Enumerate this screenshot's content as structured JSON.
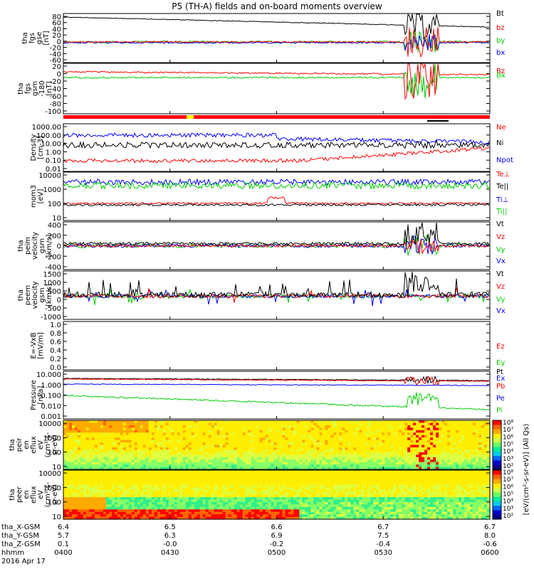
{
  "title": "P5 (TH-A) fields and on-board moments overview",
  "colors": {
    "black": "#000000",
    "red": "#ff0000",
    "green": "#00cc00",
    "blue": "#0000ff",
    "yellow": "#ffff00"
  },
  "chart_data": [
    {
      "type": "line",
      "panel": "fgs",
      "ylabel_lines": [
        "tha",
        "fgs",
        "gse",
        "[nT]"
      ],
      "yticks": [
        "80",
        "60",
        "40",
        "20",
        "0",
        "-20",
        "-40",
        "-60"
      ],
      "ylim": [
        -60,
        90
      ],
      "series": [
        {
          "name": "Bt",
          "color": "#000000"
        },
        {
          "name": "bz",
          "color": "#ff0000"
        },
        {
          "name": "by",
          "color": "#00cc00"
        },
        {
          "name": "bx",
          "color": "#0000ff"
        }
      ]
    },
    {
      "type": "line",
      "panel": "fgs-gsm",
      "ylabel_lines": [
        "tha",
        "fgs",
        "gsm",
        "-180",
        "[nT]"
      ],
      "yticks": [
        "20",
        "0",
        "-20",
        "-40",
        "-60",
        "-80",
        "-100"
      ],
      "ylim": [
        -110,
        25
      ],
      "series": [
        {
          "name": "Bz",
          "color": "#ff0000"
        },
        {
          "name": "Bx",
          "color": "#00cc00"
        }
      ]
    },
    {
      "type": "line",
      "panel": "density",
      "ylabel_lines": [
        "Density",
        "[cm-3]"
      ],
      "yticks": [
        "1000.00",
        "100.00",
        "10.00",
        "1.00",
        "0.10",
        "0.01"
      ],
      "yscale": "log",
      "ylim": [
        0.005,
        2000
      ],
      "series": [
        {
          "name": "Ne",
          "color": "#ff0000"
        },
        {
          "name": "Ni",
          "color": "#000000"
        },
        {
          "name": "Npot",
          "color": "#0000ff"
        }
      ]
    },
    {
      "type": "line",
      "panel": "temperature",
      "ylabel_lines": [
        "mom3",
        "[eV]"
      ],
      "yticks": [
        "10000",
        "1000",
        "100",
        "10"
      ],
      "yscale": "log",
      "ylim": [
        3,
        30000
      ],
      "series": [
        {
          "name": "Te⊥",
          "color": "#ff0000"
        },
        {
          "name": "Te||",
          "color": "#000000"
        },
        {
          "name": "Ti⊥",
          "color": "#0000ff"
        },
        {
          "name": "Ti||",
          "color": "#00cc00"
        }
      ]
    },
    {
      "type": "line",
      "panel": "peim-velocity",
      "ylabel_lines": [
        "tha",
        "peim",
        "velocity",
        "gsm",
        "[km/s]"
      ],
      "yticks": [
        "400",
        "200",
        "0",
        "-200",
        "-400"
      ],
      "ylim": [
        -420,
        420
      ],
      "series": [
        {
          "name": "Vt",
          "color": "#000000"
        },
        {
          "name": "Vz",
          "color": "#ff0000"
        },
        {
          "name": "Vy",
          "color": "#00cc00"
        },
        {
          "name": "Vx",
          "color": "#0000ff"
        }
      ]
    },
    {
      "type": "line",
      "panel": "peem-velocity",
      "ylabel_lines": [
        "tha",
        "peem",
        "velocity",
        "gsm",
        "[km/s]"
      ],
      "yticks": [
        "1500",
        "1000",
        "500",
        "0",
        "-500",
        "-1000"
      ],
      "ylim": [
        -1300,
        1500
      ],
      "series": [
        {
          "name": "Vt",
          "color": "#000000"
        },
        {
          "name": "Vz",
          "color": "#ff0000"
        },
        {
          "name": "Vy",
          "color": "#00cc00"
        },
        {
          "name": "Vx",
          "color": "#0000ff"
        }
      ]
    },
    {
      "type": "line",
      "panel": "efield",
      "ylabel_lines": [
        "E=-VxB",
        "[mV/m]"
      ],
      "yticks": [
        "1.0",
        "0.8",
        "0.6",
        "0.4",
        "0.2",
        "0.0"
      ],
      "ylim": [
        0,
        1
      ],
      "series": [
        {
          "name": "Ez",
          "color": "#ff0000"
        },
        {
          "name": "Ey",
          "color": "#00cc00"
        },
        {
          "name": "Ex",
          "color": "#0000ff"
        }
      ]
    },
    {
      "type": "line",
      "panel": "pressure",
      "ylabel_lines": [
        "Pressure",
        "[nPa]"
      ],
      "yticks": [
        "10.000",
        "1.000",
        "0.100",
        "0.010",
        "0.001"
      ],
      "yscale": "log",
      "ylim": [
        0.0008,
        12
      ],
      "series": [
        {
          "name": "Pt",
          "color": "#000000"
        },
        {
          "name": "Pb",
          "color": "#ff0000"
        },
        {
          "name": "Pe",
          "color": "#0000ff"
        },
        {
          "name": "Pi",
          "color": "#00cc00"
        }
      ]
    },
    {
      "type": "heatmap",
      "panel": "peir",
      "ylabel_lines": [
        "tha",
        "peir",
        "en",
        "eflux",
        "eV",
        "(cm²-s-",
        "sr-eV)"
      ],
      "yticks": [
        "10000",
        "1000",
        "100",
        "10"
      ],
      "yscale": "log"
    },
    {
      "type": "heatmap",
      "panel": "peer",
      "ylabel_lines": [
        "tha",
        "peer",
        "en",
        "eflux",
        "eV",
        "(cm²-s-",
        "sr-eV)"
      ],
      "yticks": [
        "10000",
        "1000",
        "100",
        "10"
      ],
      "yscale": "log"
    }
  ],
  "colorbar": {
    "label": "[eV/(cm²-s-sr-eV)] (All Qs)",
    "top_ticks": [
      "10⁸",
      "10⁷",
      "10⁶",
      "10⁵",
      "10⁴",
      "10³",
      "10²"
    ],
    "bottom_ticks": [
      "10⁸",
      "10⁷",
      "10⁶",
      "10⁵",
      "10⁴",
      "10³",
      "10²"
    ]
  },
  "x_axis": {
    "row_labels": [
      "tha_X-GSM",
      "tha_Y-GSM",
      "tha_Z-GSM",
      "hhmm",
      "2016 Apr 17"
    ],
    "ticks": [
      {
        "x": "6.4",
        "y": "5.7",
        "z": "0.1",
        "hhmm": "0400"
      },
      {
        "x": "6.5",
        "y": "6.3",
        "z": "-0.0",
        "hhmm": "0430"
      },
      {
        "x": "6.6",
        "y": "6.9",
        "z": "-0.2",
        "hhmm": "0500"
      },
      {
        "x": "6.7",
        "y": "7.5",
        "z": "-0.4",
        "hhmm": "0530"
      },
      {
        "x": "6.7",
        "y": "8.0",
        "z": "-0.6",
        "hhmm": "0600"
      }
    ]
  }
}
